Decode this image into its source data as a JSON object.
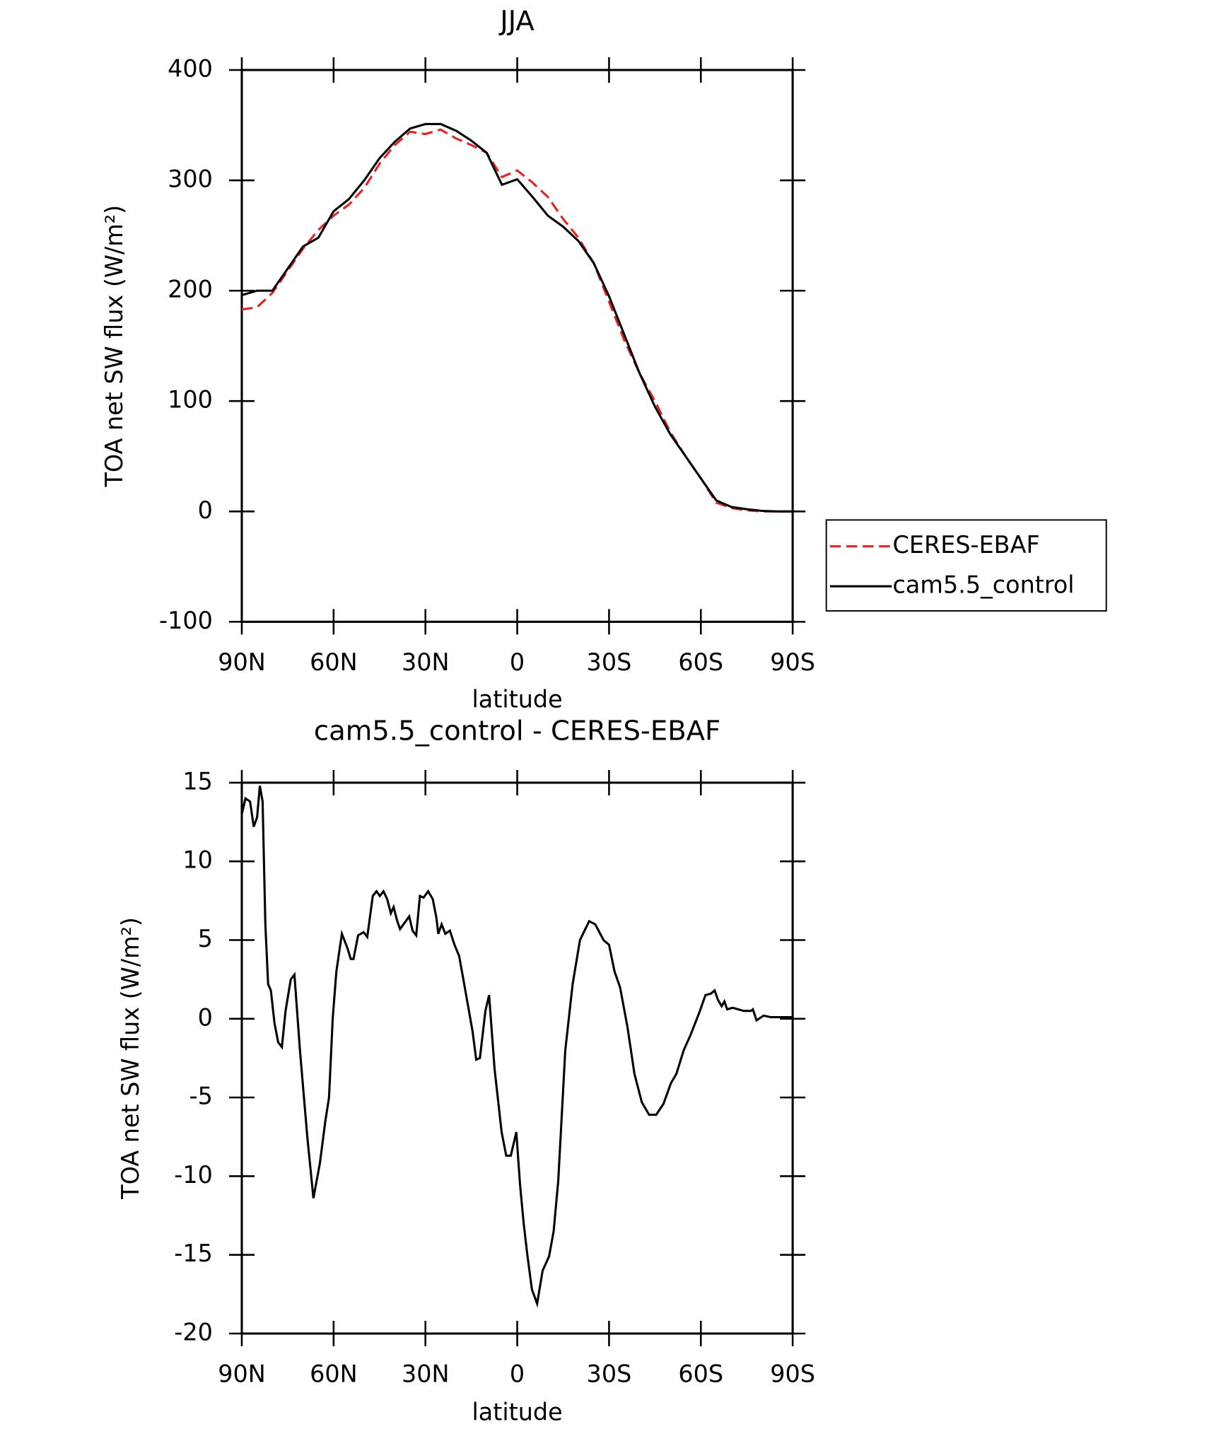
{
  "chart_data": [
    {
      "type": "line",
      "title": "JJA",
      "xlabel": "latitude",
      "ylabel": "TOA net SW flux (W/m²)",
      "x": [
        90,
        85,
        80,
        75,
        70,
        65,
        60,
        55,
        50,
        45,
        40,
        35,
        30,
        25,
        20,
        15,
        10,
        5,
        0,
        -5,
        -10,
        -15,
        -20,
        -25,
        -30,
        -35,
        -40,
        -45,
        -50,
        -55,
        -60,
        -65,
        -70,
        -75,
        -80,
        -85,
        -90
      ],
      "series": [
        {
          "name": "CERES-EBAF",
          "color": "#e8201f",
          "dash": true,
          "values": [
            183,
            185,
            198,
            218,
            238,
            255,
            268,
            278,
            293,
            315,
            332,
            344,
            342,
            346,
            338,
            332,
            325,
            303,
            309,
            298,
            285,
            265,
            248,
            225,
            190,
            155,
            125,
            100,
            72,
            50,
            30,
            8,
            3,
            1,
            0,
            0,
            0
          ]
        },
        {
          "name": "cam5.5_control",
          "color": "#000000",
          "dash": false,
          "values": [
            196,
            200,
            200,
            220,
            240,
            248,
            272,
            283,
            300,
            320,
            335,
            347,
            351,
            351,
            345,
            336,
            325,
            296,
            301,
            285,
            268,
            258,
            245,
            225,
            195,
            160,
            125,
            95,
            70,
            50,
            30,
            10,
            4,
            2,
            0.5,
            0,
            0
          ]
        }
      ],
      "xlim": [
        90,
        -90
      ],
      "xticks": [
        {
          "value": 90,
          "label": "90N"
        },
        {
          "value": 60,
          "label": "60N"
        },
        {
          "value": 30,
          "label": "30N"
        },
        0,
        {
          "value": -30,
          "label": "30S"
        },
        {
          "value": -60,
          "label": "60S"
        },
        {
          "value": -90,
          "label": "90S"
        }
      ],
      "ylim": [
        -100,
        400
      ],
      "yticks": [
        -100,
        0,
        100,
        200,
        300,
        400
      ],
      "legend": "right"
    },
    {
      "type": "line",
      "title": "cam5.5_control - CERES-EBAF",
      "xlabel": "latitude",
      "ylabel": "TOA net SW flux (W/m²)",
      "x": [
        90,
        88.8,
        87.3,
        86.1,
        85.0,
        84.1,
        83.2,
        82.3,
        81.4,
        80.5,
        79.3,
        78.1,
        76.9,
        75.7,
        74.0,
        72.8,
        71.0,
        68.6,
        66.6,
        64.5,
        62.7,
        61.5,
        60.3,
        59.1,
        57.3,
        55.5,
        54.4,
        53.5,
        52.0,
        50.2,
        49.0,
        47.2,
        46.0,
        44.9,
        43.7,
        42.5,
        41.3,
        40.4,
        39.2,
        38.3,
        36.8,
        35.3,
        34.2,
        33.0,
        31.8,
        30.6,
        29.1,
        27.6,
        26.4,
        25.8,
        24.7,
        23.5,
        22.0,
        20.5,
        19.0,
        17.6,
        14.6,
        13.4,
        12.2,
        10.4,
        9.2,
        7.4,
        5.1,
        3.6,
        2.1,
        0.3,
        -0.9,
        -2.1,
        -3.3,
        -4.8,
        -6.5,
        -8.3,
        -10.4,
        -11.9,
        -13.4,
        -15.7,
        -18.1,
        -20.5,
        -23.5,
        -25.5,
        -28.2,
        -30.0,
        -31.8,
        -33.6,
        -36.0,
        -38.3,
        -40.7,
        -43.1,
        -45.4,
        -47.8,
        -50.2,
        -52.0,
        -54.4,
        -56.7,
        -59.7,
        -61.5,
        -63.3,
        -64.5,
        -65.6,
        -66.8,
        -67.7,
        -68.6,
        -70.4,
        -72.2,
        -74.0,
        -76.4,
        -77.0,
        -78.2,
        -80.5,
        -82.9,
        -90
      ],
      "values": [
        13,
        14,
        13.8,
        12.2,
        12.8,
        14.8,
        13.8,
        6,
        2.2,
        1.8,
        -0.3,
        -1.5,
        -1.8,
        0.5,
        2.5,
        2.8,
        -2,
        -7.5,
        -11.4,
        -9.2,
        -6.5,
        -5,
        0,
        3,
        5.4,
        4.5,
        3.8,
        3.8,
        5.3,
        5.5,
        5.2,
        7.8,
        8.1,
        7.8,
        8.1,
        7.6,
        6.7,
        7.1,
        6.2,
        5.7,
        6.1,
        6.5,
        5.6,
        5.3,
        7.8,
        7.7,
        8.1,
        7.6,
        6.4,
        5.4,
        6,
        5.4,
        5.6,
        4.7,
        4,
        2.5,
        -0.8,
        -2.6,
        -2.5,
        0.5,
        1.5,
        -3.2,
        -7.2,
        -8.7,
        -8.7,
        -7.2,
        -10.5,
        -13,
        -15,
        -17.2,
        -18.1,
        -16,
        -15.1,
        -13.5,
        -10.3,
        -2,
        2.2,
        5,
        6.2,
        6,
        5,
        4.7,
        3,
        2,
        -0.5,
        -3.5,
        -5.3,
        -6.1,
        -6.1,
        -5.4,
        -4.1,
        -3.5,
        -2,
        -1,
        0.5,
        1.5,
        1.6,
        1.8,
        1.2,
        0.8,
        1.1,
        0.6,
        0.7,
        0.6,
        0.5,
        0.5,
        0.6,
        -0.1,
        0.2,
        0.1,
        0.1
      ],
      "color": "#000000",
      "xlim": [
        90,
        -90
      ],
      "xticks": [
        {
          "value": 90,
          "label": "90N"
        },
        {
          "value": 60,
          "label": "60N"
        },
        {
          "value": 30,
          "label": "30N"
        },
        0,
        {
          "value": -30,
          "label": "30S"
        },
        {
          "value": -60,
          "label": "60S"
        },
        {
          "value": -90,
          "label": "90S"
        }
      ],
      "ylim": [
        -20,
        15
      ],
      "yticks": [
        -20,
        -15,
        -10,
        -5,
        0,
        5,
        10,
        15
      ]
    }
  ]
}
